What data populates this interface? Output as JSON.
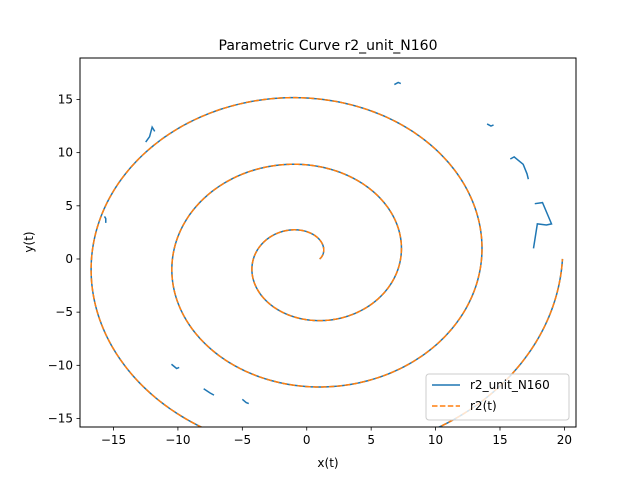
{
  "chart_data": {
    "type": "line",
    "title": "Parametric Curve r2_unit_N160",
    "xlabel": "x(t)",
    "ylabel": "y(t)",
    "xlim": [
      -17.6,
      20.9
    ],
    "ylim": [
      -15.8,
      18.9
    ],
    "xticks": [
      -15,
      -10,
      -5,
      0,
      5,
      10,
      15,
      20
    ],
    "yticks": [
      -15,
      -10,
      -5,
      0,
      5,
      10,
      15
    ],
    "grid": false,
    "legend_position": "lower-right",
    "colors": {
      "series_a": "#1f77b4",
      "series_b": "#ff7f0e"
    },
    "spiral": {
      "t_start": 0,
      "t_end": 18.85,
      "r0": 1,
      "rate": 1
    },
    "series": [
      {
        "name": "r2_unit_N160",
        "style": "solid",
        "perturbations": [
          {
            "x": [
              -15.6,
              -15.6,
              -15.7
            ],
            "y": [
              3.4,
              3.8,
              4.0
            ]
          },
          {
            "x": [
              -12.5,
              -12.2,
              -12.0,
              -11.8
            ],
            "y": [
              11.0,
              11.5,
              12.4,
              12.0
            ]
          },
          {
            "x": [
              -10.5,
              -10.1,
              -9.9
            ],
            "y": [
              -9.9,
              -10.3,
              -10.2
            ]
          },
          {
            "x": [
              -8.0,
              -7.5,
              -7.2
            ],
            "y": [
              -12.2,
              -12.6,
              -12.8
            ]
          },
          {
            "x": [
              -5.0,
              -4.7,
              -4.5
            ],
            "y": [
              -13.2,
              -13.5,
              -13.6
            ]
          },
          {
            "x": [
              6.8,
              7.1,
              7.3
            ],
            "y": [
              16.4,
              16.6,
              16.5
            ]
          },
          {
            "x": [
              14.0,
              14.3,
              14.5
            ],
            "y": [
              12.7,
              12.5,
              12.6
            ]
          },
          {
            "x": [
              15.8,
              16.1,
              16.8,
              17.1,
              17.2
            ],
            "y": [
              9.4,
              9.6,
              8.9,
              8.0,
              7.5
            ]
          },
          {
            "x": [
              17.7,
              18.3,
              19.0,
              18.6,
              17.9,
              17.6
            ],
            "y": [
              5.2,
              5.3,
              3.3,
              3.2,
              3.3,
              1.0
            ]
          }
        ]
      },
      {
        "name": "r2(t)",
        "style": "dashed"
      }
    ]
  }
}
